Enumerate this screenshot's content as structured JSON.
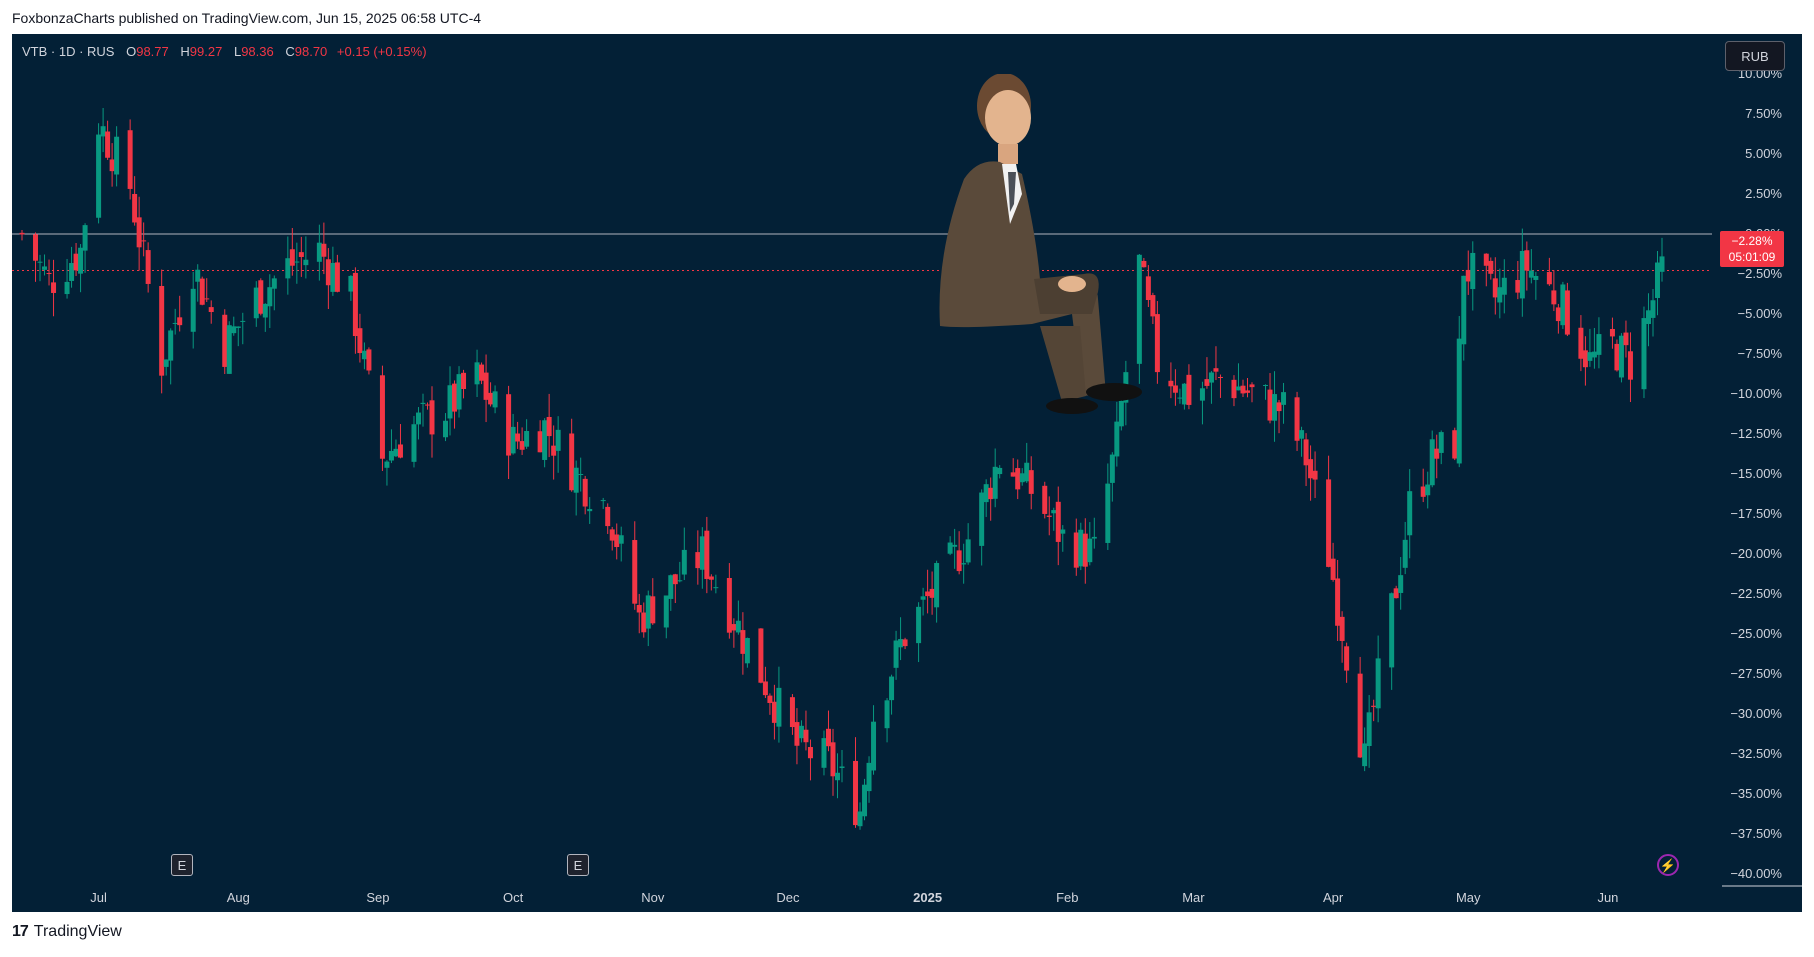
{
  "published_line": "FoxbonzaCharts published on TradingView.com, Jun 15, 2025 06:58 UTC-4",
  "header": {
    "symbol": "VTB · 1D · RUS",
    "open_label": "O",
    "open": "98.77",
    "high_label": "H",
    "high": "99.27",
    "low_label": "L",
    "low": "98.36",
    "close_label": "C",
    "close": "98.70",
    "change": "+0.15 (+0.15%)"
  },
  "currency_button": "RUB",
  "price_badge": {
    "value": "−2.28%",
    "countdown": "05:01:09"
  },
  "earnings_marker": "E",
  "footer_brand": "TradingView",
  "colors": {
    "background": "#032036",
    "up": "#089981",
    "down": "#f23645",
    "text": "#d1d4dc"
  },
  "icons": [
    "earnings-icon",
    "lightning-icon",
    "tradingview-logo-icon",
    "person-image"
  ],
  "chart_data": {
    "type": "candlestick",
    "y_axis": {
      "unit": "%",
      "min": -40,
      "max": 10,
      "step": 2.5,
      "scale": "percentage"
    },
    "y_ticks": [
      "10.00%",
      "7.50%",
      "5.00%",
      "2.50%",
      "0.00%",
      "−2.50%",
      "−5.00%",
      "−7.50%",
      "−10.00%",
      "−12.50%",
      "−15.00%",
      "−17.50%",
      "−20.00%",
      "−22.50%",
      "−25.00%",
      "−27.50%",
      "−30.00%",
      "−32.50%",
      "−35.00%",
      "−37.50%",
      "−40.00%"
    ],
    "x_ticks": [
      "Jul",
      "Aug",
      "Sep",
      "Oct",
      "Nov",
      "Dec",
      "2025",
      "Feb",
      "Mar",
      "Apr",
      "May",
      "Jun"
    ],
    "x_range": [
      "2024-06-14",
      "2025-06-13"
    ],
    "current_value": -2.28,
    "zero_line": 0,
    "close_path": [
      {
        "date": "2024-06-14",
        "v": 0
      },
      {
        "date": "2024-06-20",
        "v": -3
      },
      {
        "date": "2024-06-27",
        "v": -1
      },
      {
        "date": "2024-07-01",
        "v": 7
      },
      {
        "date": "2024-07-08",
        "v": 3
      },
      {
        "date": "2024-07-15",
        "v": -8
      },
      {
        "date": "2024-07-22",
        "v": -2
      },
      {
        "date": "2024-07-29",
        "v": -7
      },
      {
        "date": "2024-08-05",
        "v": -4
      },
      {
        "date": "2024-08-12",
        "v": -2
      },
      {
        "date": "2024-08-19",
        "v": -1
      },
      {
        "date": "2024-08-26",
        "v": -4
      },
      {
        "date": "2024-09-02",
        "v": -14
      },
      {
        "date": "2024-09-09",
        "v": -12
      },
      {
        "date": "2024-09-16",
        "v": -11
      },
      {
        "date": "2024-09-23",
        "v": -9
      },
      {
        "date": "2024-10-01",
        "v": -13
      },
      {
        "date": "2024-10-08",
        "v": -12
      },
      {
        "date": "2024-10-15",
        "v": -15
      },
      {
        "date": "2024-10-22",
        "v": -17
      },
      {
        "date": "2024-10-29",
        "v": -24
      },
      {
        "date": "2024-11-05",
        "v": -22
      },
      {
        "date": "2024-11-12",
        "v": -20
      },
      {
        "date": "2024-11-19",
        "v": -24
      },
      {
        "date": "2024-11-26",
        "v": -28
      },
      {
        "date": "2024-12-03",
        "v": -32
      },
      {
        "date": "2024-12-10",
        "v": -33
      },
      {
        "date": "2024-12-17",
        "v": -36
      },
      {
        "date": "2024-12-20",
        "v": -30
      },
      {
        "date": "2024-12-27",
        "v": -25
      },
      {
        "date": "2025-01-03",
        "v": -22
      },
      {
        "date": "2025-01-10",
        "v": -19
      },
      {
        "date": "2025-01-17",
        "v": -14
      },
      {
        "date": "2025-01-24",
        "v": -16
      },
      {
        "date": "2025-01-31",
        "v": -19
      },
      {
        "date": "2025-02-07",
        "v": -20
      },
      {
        "date": "2025-02-12",
        "v": -13
      },
      {
        "date": "2025-02-17",
        "v": -2
      },
      {
        "date": "2025-02-21",
        "v": -8
      },
      {
        "date": "2025-02-28",
        "v": -10
      },
      {
        "date": "2025-03-07",
        "v": -9
      },
      {
        "date": "2025-03-14",
        "v": -10
      },
      {
        "date": "2025-03-21",
        "v": -11
      },
      {
        "date": "2025-03-26",
        "v": -14
      },
      {
        "date": "2025-03-31",
        "v": -20
      },
      {
        "date": "2025-04-04",
        "v": -26
      },
      {
        "date": "2025-04-08",
        "v": -33
      },
      {
        "date": "2025-04-11",
        "v": -28
      },
      {
        "date": "2025-04-15",
        "v": -22
      },
      {
        "date": "2025-04-18",
        "v": -17
      },
      {
        "date": "2025-04-23",
        "v": -14
      },
      {
        "date": "2025-04-28",
        "v": -13
      },
      {
        "date": "2025-04-30",
        "v": -2
      },
      {
        "date": "2025-05-07",
        "v": -4
      },
      {
        "date": "2025-05-14",
        "v": -2
      },
      {
        "date": "2025-05-21",
        "v": -4
      },
      {
        "date": "2025-05-28",
        "v": -8
      },
      {
        "date": "2025-06-02",
        "v": -7
      },
      {
        "date": "2025-06-06",
        "v": -8
      },
      {
        "date": "2025-06-10",
        "v": -5
      },
      {
        "date": "2025-06-13",
        "v": -2.28
      }
    ]
  }
}
